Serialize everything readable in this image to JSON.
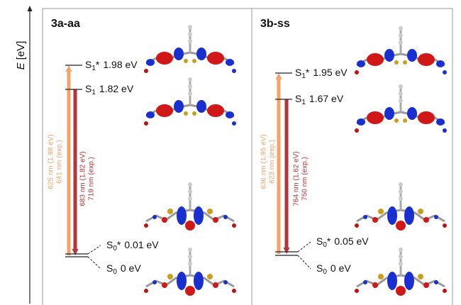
{
  "axis_label": {
    "symbol": "E",
    "unit": "[eV]"
  },
  "panels": [
    {
      "title": "3a-aa",
      "levels": [
        {
          "state": "S",
          "sub": "1",
          "mark": "*",
          "energy": "1.98 eV"
        },
        {
          "state": "S",
          "sub": "1",
          "energy": "1.82 eV"
        },
        {
          "state": "S",
          "sub": "0",
          "mark": "*",
          "energy": "0.01 eV"
        },
        {
          "state": "S",
          "sub": "0",
          "energy": "0 eV"
        }
      ],
      "transitions": [
        {
          "calc": "625 nm (1.98 eV)",
          "exp": "641 nm (exp.)"
        },
        {
          "calc": "683 nm (1.82 eV)",
          "exp": "719 nm (exp.)"
        }
      ]
    },
    {
      "title": "3b-ss",
      "levels": [
        {
          "state": "S",
          "sub": "1",
          "mark": "*",
          "energy": "1.95 eV"
        },
        {
          "state": "S",
          "sub": "1",
          "energy": "1.67 eV"
        },
        {
          "state": "S",
          "sub": "0",
          "mark": "*",
          "energy": "0.05 eV"
        },
        {
          "state": "S",
          "sub": "0",
          "energy": "0 eV"
        }
      ],
      "transitions": [
        {
          "calc": "636 nm (1.95 eV)",
          "exp": "623 nm (exp.)"
        },
        {
          "calc": "764 nm (1.62 eV)",
          "exp": "750 nm (exp.)"
        }
      ]
    }
  ]
}
